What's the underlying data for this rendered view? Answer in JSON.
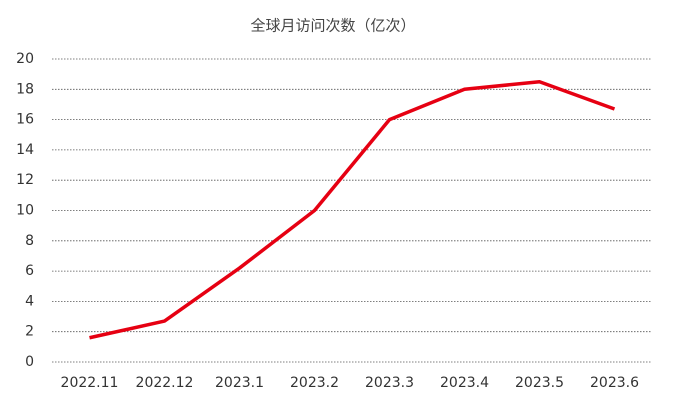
{
  "chart_data": {
    "type": "line",
    "title": "全球月访问次数（亿次）",
    "categories": [
      "2022.11",
      "2022.12",
      "2023.1",
      "2023.2",
      "2023.3",
      "2023.4",
      "2023.5",
      "2023.6"
    ],
    "values": [
      1.6,
      2.7,
      6.2,
      10,
      16,
      18,
      18.5,
      16.7
    ],
    "color": "#e60012",
    "ylim": [
      0,
      20
    ],
    "yticks": [
      0,
      2,
      4,
      6,
      8,
      10,
      12,
      14,
      16,
      18,
      20
    ],
    "grid": true
  }
}
